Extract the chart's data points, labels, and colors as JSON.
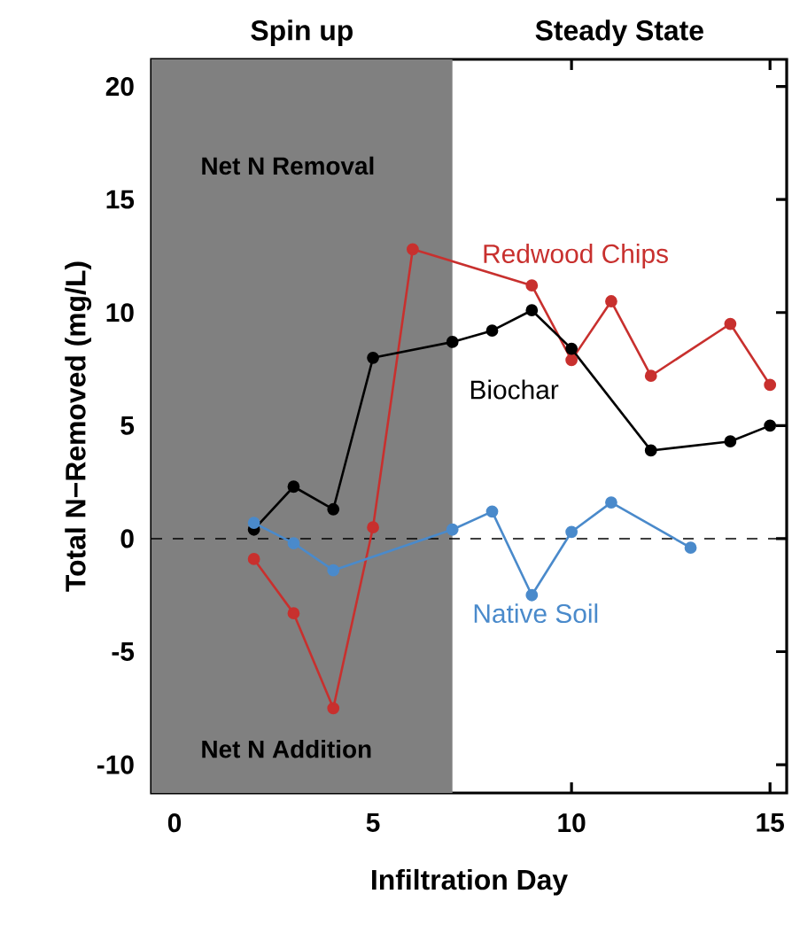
{
  "chart_data": {
    "type": "line",
    "xlabel": "Infiltration Day",
    "ylabel": "Total N−Removed (mg/L)",
    "annotations": [
      "Spin up",
      "Steady State",
      "Net N Removal",
      "Net N Addition"
    ],
    "series": [
      {
        "name": "Redwood Chips",
        "color": "#c8302e",
        "x": [
          2,
          3,
          4,
          5,
          6,
          9,
          10,
          11,
          12,
          14,
          15
        ],
        "values": [
          -0.9,
          -3.3,
          -7.5,
          0.5,
          12.8,
          11.2,
          7.9,
          10.5,
          7.2,
          9.5,
          6.8
        ]
      },
      {
        "name": "Biochar",
        "color": "#000000",
        "x": [
          2,
          3,
          4,
          5,
          7,
          8,
          9,
          10,
          12,
          14,
          15
        ],
        "values": [
          0.4,
          2.3,
          1.3,
          8.0,
          8.7,
          9.2,
          10.1,
          8.4,
          3.9,
          4.3,
          5.0
        ]
      },
      {
        "name": "Native Soil",
        "color": "#4a8acb",
        "x": [
          2,
          3,
          4,
          7,
          8,
          9,
          10,
          11,
          13
        ],
        "values": [
          0.7,
          -0.2,
          -1.4,
          0.4,
          1.2,
          -2.5,
          0.3,
          1.6,
          -0.4
        ]
      }
    ],
    "xlim": [
      -0.58,
      15.42
    ],
    "ylim": [
      -11.25,
      21.2
    ],
    "xticks": [
      0,
      5,
      10,
      15
    ],
    "yticks": [
      -10,
      -5,
      0,
      5,
      10,
      15,
      20
    ],
    "bands": [
      {
        "axis": "x",
        "from": -0.58,
        "to": 7,
        "color": "#808080"
      }
    ],
    "ref_lines": [
      {
        "axis": "y",
        "value": 0,
        "color": "#000000",
        "line_style": "dashed"
      }
    ],
    "marker": "circle",
    "line_style": "solid",
    "legend": false,
    "grid": false
  }
}
